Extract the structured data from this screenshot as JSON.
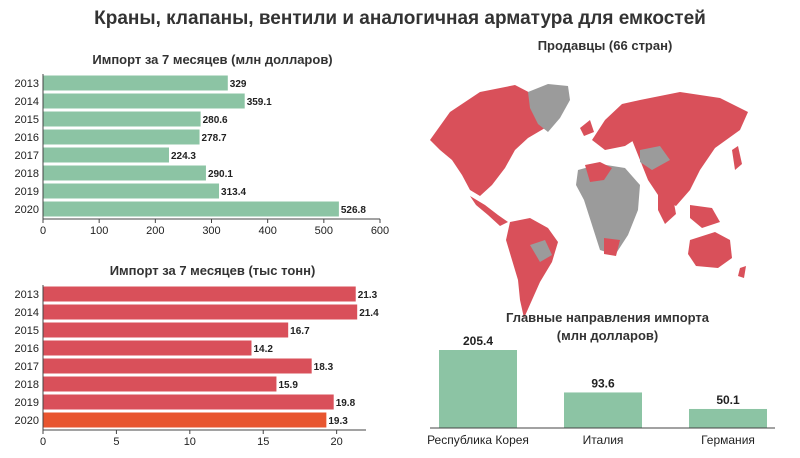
{
  "title": "Краны, клапаны, вентили и аналогичная арматура для емкостей",
  "colors": {
    "green": "#8cc4a4",
    "red": "#d9505a",
    "highlight": "#e8552f",
    "grey": "#9b9b9b"
  },
  "chart_data": [
    {
      "id": "import_value",
      "type": "bar",
      "orientation": "horizontal",
      "title": "Импорт за 7 месяцев (млн долларов)",
      "categories": [
        "2013",
        "2014",
        "2015",
        "2016",
        "2017",
        "2018",
        "2019",
        "2020"
      ],
      "values": [
        329,
        359.1,
        280.6,
        278.7,
        224.3,
        290.1,
        313.4,
        526.8
      ],
      "value_labels": [
        "329",
        "359.1",
        "280.6",
        "278.7",
        "224.3",
        "290.1",
        "313.4",
        "526.8"
      ],
      "xlim": [
        0,
        600
      ],
      "xticks": [
        0,
        100,
        200,
        300,
        400,
        500,
        600
      ],
      "color": "#8cc4a4"
    },
    {
      "id": "import_weight",
      "type": "bar",
      "orientation": "horizontal",
      "title": "Импорт за 7 месяцев (тыс тонн)",
      "categories": [
        "2013",
        "2014",
        "2015",
        "2016",
        "2017",
        "2018",
        "2019",
        "2020"
      ],
      "values": [
        21.3,
        21.4,
        16.7,
        14.2,
        18.3,
        15.9,
        19.8,
        19.3
      ],
      "value_labels": [
        "21.3",
        "21.4",
        "16.7",
        "14.2",
        "18.3",
        "15.9",
        "19.8",
        "19.3"
      ],
      "xlim": [
        0,
        22
      ],
      "xticks": [
        0,
        5,
        10,
        15,
        20
      ],
      "color": "#d9505a",
      "highlight_color": "#e8552f",
      "highlight_index": 7
    },
    {
      "id": "sellers_map",
      "type": "map",
      "title": "Продавцы (66 стран)"
    },
    {
      "id": "top_sources",
      "type": "bar",
      "title": "Главные направления импорта",
      "subtitle": "(млн долларов)",
      "categories": [
        "Республика Корея",
        "Италия",
        "Германия"
      ],
      "values": [
        205.4,
        93.6,
        50.1
      ],
      "value_labels": [
        "205.4",
        "93.6",
        "50.1"
      ],
      "color": "#8cc4a4"
    }
  ]
}
